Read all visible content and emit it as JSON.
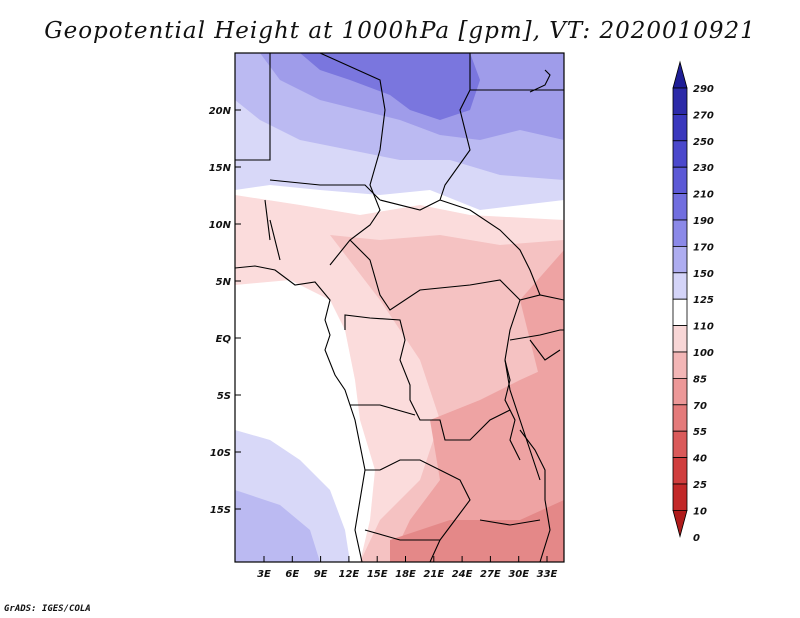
{
  "title": "Geopotential Height at 1000hPa [gpm], VT: 2020010921",
  "credit": "GrADS: IGES/COLA",
  "lat_labels": [
    "20N",
    "15N",
    "10N",
    "5N",
    "EQ",
    "5S",
    "10S",
    "15S"
  ],
  "lon_labels": [
    "3E",
    "6E",
    "9E",
    "12E",
    "15E",
    "18E",
    "21E",
    "24E",
    "27E",
    "30E",
    "33E"
  ],
  "colorbar": {
    "levels": [
      "290",
      "270",
      "250",
      "230",
      "210",
      "190",
      "170",
      "150",
      "125",
      "110",
      "100",
      "85",
      "70",
      "55",
      "40",
      "25",
      "10",
      "0"
    ],
    "colors": [
      "#1f1e96",
      "#2c2aa8",
      "#3a38bd",
      "#4b48cc",
      "#5c59d6",
      "#716edf",
      "#8b89e8",
      "#aeadf0",
      "#d4d4f8",
      "#ffffff",
      "#f8d6d6",
      "#f3b6b6",
      "#ec9898",
      "#e47a7a",
      "#da5a5a",
      "#d03e3e",
      "#c22828",
      "#b01b1b"
    ]
  },
  "map_colors": {
    "ocean_white": "#ffffff",
    "lavender_light": "#d8d8f8",
    "lavender": "#bbbaf2",
    "blue_mid": "#9f9cea",
    "blue_dark": "#7a76de",
    "pink_light": "#fbdcdc",
    "pink": "#f5c2c2",
    "salmon": "#eea3a3",
    "red_mid": "#e48888"
  }
}
